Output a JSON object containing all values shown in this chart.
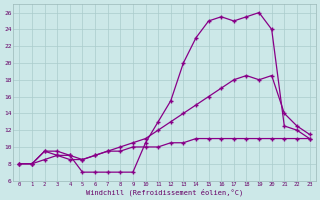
{
  "xlabel": "Windchill (Refroidissement éolien,°C)",
  "background_color": "#cce8e8",
  "grid_color": "#aacccc",
  "line_color": "#880088",
  "line1_x": [
    0,
    1,
    2,
    3,
    4,
    5,
    6,
    7,
    8,
    9,
    10,
    11,
    12,
    13,
    14,
    15,
    16,
    17,
    18,
    19,
    20,
    21,
    22,
    23
  ],
  "line1_y": [
    8.0,
    8.0,
    9.5,
    9.5,
    9.0,
    7.0,
    7.0,
    7.0,
    7.0,
    7.0,
    10.5,
    13.0,
    15.5,
    20.0,
    23.0,
    25.0,
    25.5,
    25.0,
    25.5,
    26.0,
    24.0,
    12.5,
    12.0,
    11.0
  ],
  "line2_x": [
    0,
    1,
    2,
    3,
    4,
    5,
    6,
    7,
    8,
    9,
    10,
    11,
    12,
    13,
    14,
    15,
    16,
    17,
    18,
    19,
    20,
    21,
    22,
    23
  ],
  "line2_y": [
    8.0,
    8.0,
    9.5,
    9.0,
    8.5,
    8.5,
    9.0,
    9.5,
    10.0,
    10.5,
    11.0,
    12.0,
    13.0,
    14.0,
    15.0,
    16.0,
    17.0,
    18.0,
    18.5,
    18.0,
    18.5,
    14.0,
    12.5,
    11.5
  ],
  "line3_x": [
    0,
    1,
    2,
    3,
    4,
    5,
    6,
    7,
    8,
    9,
    10,
    11,
    12,
    13,
    14,
    15,
    16,
    17,
    18,
    19,
    20,
    21,
    22,
    23
  ],
  "line3_y": [
    8.0,
    8.0,
    8.5,
    9.0,
    9.0,
    8.5,
    9.0,
    9.5,
    9.5,
    10.0,
    10.0,
    10.0,
    10.5,
    10.5,
    11.0,
    11.0,
    11.0,
    11.0,
    11.0,
    11.0,
    11.0,
    11.0,
    11.0,
    11.0
  ],
  "ylim": [
    6,
    27
  ],
  "xlim": [
    -0.5,
    23.5
  ],
  "yticks": [
    6,
    8,
    10,
    12,
    14,
    16,
    18,
    20,
    22,
    24,
    26
  ],
  "xticks": [
    0,
    1,
    2,
    3,
    4,
    5,
    6,
    7,
    8,
    9,
    10,
    11,
    12,
    13,
    14,
    15,
    16,
    17,
    18,
    19,
    20,
    21,
    22,
    23
  ]
}
